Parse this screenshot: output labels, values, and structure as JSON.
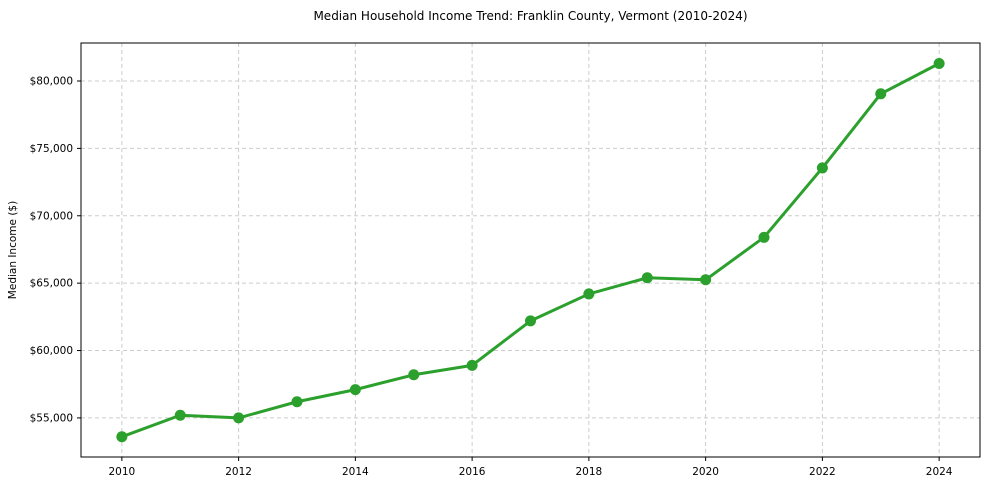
{
  "chart_data": {
    "type": "line",
    "title": "Median Household Income Trend: Franklin County, Vermont (2010-2024)",
    "xlabel": "",
    "ylabel": "Median Income ($)",
    "x": [
      2010,
      2011,
      2012,
      2013,
      2014,
      2015,
      2016,
      2017,
      2018,
      2019,
      2020,
      2021,
      2022,
      2023,
      2024
    ],
    "values": [
      53600,
      55200,
      55000,
      56200,
      57100,
      58200,
      58900,
      62200,
      64200,
      65400,
      65250,
      68400,
      73550,
      79050,
      81300
    ],
    "x_tick_labels": [
      "2010",
      "2012",
      "2014",
      "2016",
      "2018",
      "2020",
      "2022",
      "2024"
    ],
    "y_ticks": [
      {
        "value": 55000,
        "label": "$55,000"
      },
      {
        "value": 60000,
        "label": "$60,000"
      },
      {
        "value": 65000,
        "label": "$65,000"
      },
      {
        "value": 70000,
        "label": "$70,000"
      },
      {
        "value": 75000,
        "label": "$75,000"
      },
      {
        "value": 80000,
        "label": "$80,000"
      }
    ],
    "xlim": [
      2009.3,
      2024.7
    ],
    "ylim": [
      52100,
      82820
    ],
    "grid": "dashed gridlines at labeled ticks, horizontal and vertical",
    "legend": "none",
    "colors": {
      "line": "#2ca02c",
      "marker": "#2ca02c",
      "grid": "#cccccc",
      "axis": "#000000",
      "text": "#000000",
      "background": "#ffffff"
    },
    "marker": "circle",
    "line_width": 3,
    "marker_radius": 5.5
  }
}
